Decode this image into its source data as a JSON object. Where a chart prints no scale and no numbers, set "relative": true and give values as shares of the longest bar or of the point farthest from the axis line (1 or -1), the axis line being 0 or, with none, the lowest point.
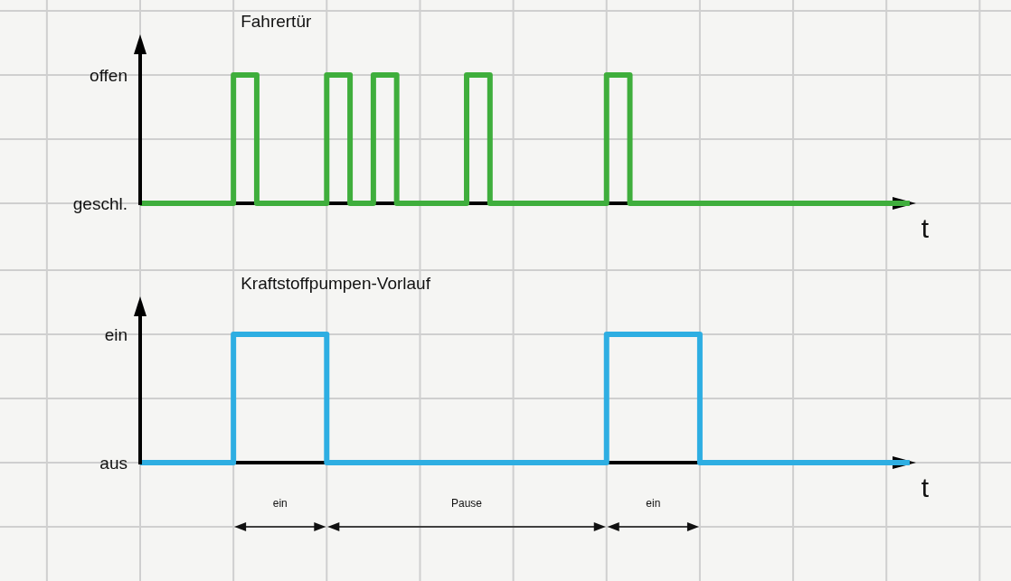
{
  "chart_data": [
    {
      "type": "step",
      "title": "Fahrertür",
      "xlabel": "t",
      "relative": true,
      "categories": [
        null,
        null,
        null,
        null,
        null,
        null,
        null,
        null,
        null,
        null,
        null,
        null,
        null,
        null,
        null,
        null,
        null,
        null,
        null,
        null,
        null,
        null,
        null,
        null,
        null,
        null,
        null,
        null,
        null,
        null,
        null,
        null,
        null,
        null
      ],
      "grid": true,
      "series": [
        {
          "color": "#3fae3c",
          "values": [
            0,
            0,
            0,
            0,
            1,
            0,
            0,
            0,
            1,
            0,
            1,
            0,
            0,
            0,
            1,
            0,
            0,
            0,
            0,
            0,
            1,
            0,
            0,
            0,
            0,
            0,
            0,
            0,
            0,
            0,
            0,
            0,
            0,
            0
          ]
        }
      ],
      "annotations": [
        "offen",
        "geschl."
      ]
    },
    {
      "type": "step",
      "title": "Kraftstoffpumpen-Vorlauf",
      "xlabel": "t",
      "relative": true,
      "categories": [
        null,
        null,
        null,
        null,
        null,
        null,
        null,
        null,
        null,
        null,
        null,
        null,
        null,
        null,
        null,
        null,
        null,
        null,
        null,
        null,
        null,
        null,
        null,
        null,
        null,
        null,
        null,
        null,
        null,
        null,
        null,
        null,
        null,
        null
      ],
      "grid": true,
      "series": [
        {
          "color": "#2eaee2",
          "values": [
            0,
            0,
            0,
            0,
            1,
            1,
            1,
            1,
            0,
            0,
            0,
            0,
            0,
            0,
            0,
            0,
            0,
            0,
            0,
            0,
            1,
            1,
            1,
            1,
            0,
            0,
            0,
            0,
            0,
            0,
            0,
            0,
            0,
            0
          ]
        }
      ],
      "annotations": [
        "ein",
        "aus",
        "ein",
        "Pause",
        "ein"
      ]
    }
  ]
}
